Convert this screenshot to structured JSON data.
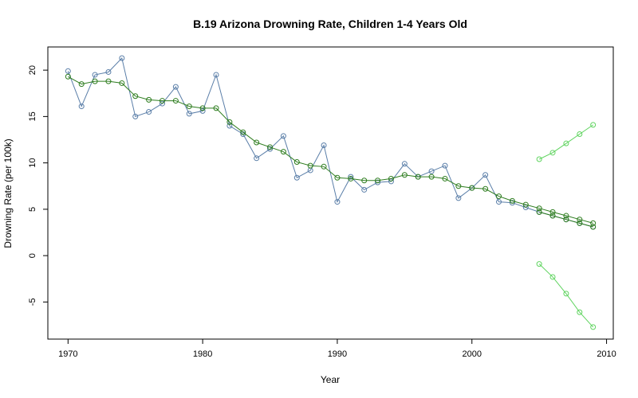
{
  "chart_data": {
    "type": "line",
    "title": "B.19  Arizona Drowning Rate, Children 1-4 Years Old",
    "xlabel": "Year",
    "ylabel": "Drowning Rate (per 100k)",
    "xlim": [
      1968.5,
      2010.5
    ],
    "ylim": [
      -9,
      22.5
    ],
    "xticks": [
      1970,
      1980,
      1990,
      2000,
      2010
    ],
    "yticks": [
      -5,
      0,
      5,
      10,
      15,
      20
    ],
    "grid": false,
    "legend": "none",
    "colors": {
      "observed": "#5a7ea8",
      "smoothed": "#2e7d1f",
      "forecast": "#2e7d1f",
      "interval": "#5fd45f"
    },
    "series": [
      {
        "role": "observed",
        "x": [
          1970,
          1971,
          1972,
          1973,
          1974,
          1975,
          1976,
          1977,
          1978,
          1979,
          1980,
          1981,
          1982,
          1983,
          1984,
          1985,
          1986,
          1987,
          1988,
          1989,
          1990,
          1991,
          1992,
          1993,
          1994,
          1995,
          1996,
          1997,
          1998,
          1999,
          2000,
          2001,
          2002,
          2003,
          2004,
          2005,
          2006,
          2007,
          2008,
          2009
        ],
        "y": [
          19.9,
          16.1,
          19.5,
          19.8,
          21.3,
          15.0,
          15.5,
          16.4,
          18.2,
          15.3,
          15.6,
          19.5,
          14.0,
          13.1,
          10.5,
          11.5,
          12.9,
          8.4,
          9.2,
          11.9,
          5.8,
          8.5,
          7.1,
          7.9,
          8.0,
          9.9,
          8.5,
          9.1,
          9.7,
          6.2,
          7.3,
          8.7,
          5.8,
          5.7,
          5.2,
          4.7,
          4.3,
          3.9,
          3.5,
          3.1
        ]
      },
      {
        "role": "smoothed",
        "x": [
          1970,
          1971,
          1972,
          1973,
          1974,
          1975,
          1976,
          1977,
          1978,
          1979,
          1980,
          1981,
          1982,
          1983,
          1984,
          1985,
          1986,
          1987,
          1988,
          1989,
          1990,
          1991,
          1992,
          1993,
          1994,
          1995,
          1996,
          1997,
          1998,
          1999,
          2000,
          2001,
          2002,
          2003,
          2004,
          2005,
          2006,
          2007,
          2008,
          2009
        ],
        "y": [
          19.3,
          18.5,
          18.8,
          18.8,
          18.6,
          17.2,
          16.8,
          16.7,
          16.7,
          16.1,
          15.9,
          15.9,
          14.4,
          13.3,
          12.2,
          11.7,
          11.2,
          10.1,
          9.7,
          9.6,
          8.4,
          8.3,
          8.1,
          8.1,
          8.3,
          8.7,
          8.5,
          8.5,
          8.3,
          7.5,
          7.3,
          7.2,
          6.4,
          5.9,
          5.5,
          5.1,
          4.7,
          4.3,
          3.9,
          3.5
        ]
      },
      {
        "role": "forecast",
        "x": [
          2005,
          2006,
          2007,
          2008,
          2009
        ],
        "y": [
          4.7,
          4.3,
          3.9,
          3.5,
          3.1
        ]
      },
      {
        "role": "upper",
        "x": [
          2005,
          2006,
          2007,
          2008,
          2009
        ],
        "y": [
          10.4,
          11.1,
          12.1,
          13.1,
          14.1
        ]
      },
      {
        "role": "lower",
        "x": [
          2005,
          2006,
          2007,
          2008,
          2009
        ],
        "y": [
          -0.9,
          -2.3,
          -4.1,
          -6.1,
          -7.7
        ]
      }
    ]
  }
}
